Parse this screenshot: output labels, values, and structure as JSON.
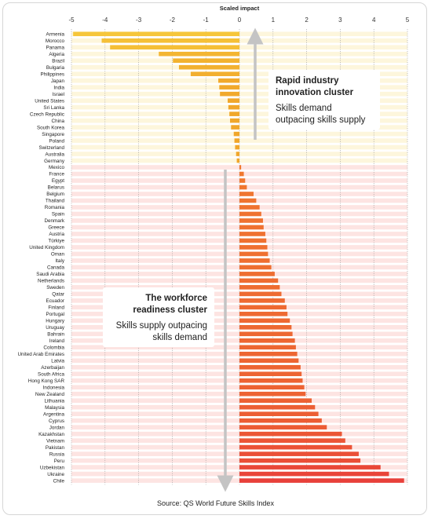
{
  "chart_data": {
    "type": "bar",
    "orientation": "horizontal",
    "title": "",
    "xlabel": "Scaled impact",
    "ylabel": "",
    "xlim": [
      -5,
      5
    ],
    "xticks": [
      "-5",
      "-4",
      "-3",
      "-2",
      "-1",
      "0",
      "1",
      "2",
      "3",
      "4",
      "5"
    ],
    "grid": true,
    "categories": [
      "Armenia",
      "Morocco",
      "Panama",
      "Algeria",
      "Brazil",
      "Bulgaria",
      "Philippines",
      "Japan",
      "India",
      "Israel",
      "United States",
      "Sri Lanka",
      "Czech Republic",
      "China",
      "South Korea",
      "Singapore",
      "Poland",
      "Switzerland",
      "Australia",
      "Germany",
      "Mexico",
      "France",
      "Egypt",
      "Belarus",
      "Belgium",
      "Thailand",
      "Romania",
      "Spain",
      "Denmark",
      "Greece",
      "Austria",
      "Türkiye",
      "United Kingdom",
      "Oman",
      "Italy",
      "Canada",
      "Saudi Arabia",
      "Netherlands",
      "Sweden",
      "Qatar",
      "Ecuador",
      "Finland",
      "Portugal",
      "Hungary",
      "Uruguay",
      "Bahrain",
      "Ireland",
      "Colombia",
      "United Arab Emirates",
      "Latvia",
      "Azerbaijan",
      "South Africa",
      "Hong Kong SAR",
      "Indonesia",
      "New Zealand",
      "Lithuania",
      "Malaysia",
      "Argentina",
      "Cyprus",
      "Jordan",
      "Kazakhstan",
      "Vietnam",
      "Pakistan",
      "Russia",
      "Peru",
      "Uzbekistan",
      "Ukraine",
      "Chile"
    ],
    "values": [
      -4.95,
      -4.1,
      -3.85,
      -2.4,
      -1.98,
      -1.8,
      -1.45,
      -0.63,
      -0.6,
      -0.58,
      -0.35,
      -0.33,
      -0.3,
      -0.28,
      -0.25,
      -0.17,
      -0.15,
      -0.13,
      -0.1,
      -0.08,
      0.05,
      0.13,
      0.17,
      0.22,
      0.42,
      0.5,
      0.6,
      0.65,
      0.7,
      0.72,
      0.77,
      0.8,
      0.83,
      0.85,
      0.9,
      0.95,
      1.05,
      1.15,
      1.2,
      1.25,
      1.35,
      1.4,
      1.43,
      1.5,
      1.55,
      1.58,
      1.65,
      1.68,
      1.72,
      1.76,
      1.82,
      1.85,
      1.88,
      1.93,
      1.97,
      2.15,
      2.25,
      2.35,
      2.45,
      2.6,
      3.05,
      3.15,
      3.35,
      3.55,
      3.6,
      4.2,
      4.45,
      4.9
    ],
    "clusters": [
      {
        "name": "Rapid industry innovation cluster",
        "description": "Skills demand outpacing skills supply"
      },
      {
        "name": "The workforce readiness cluster",
        "description": "Skills supply outpacing skills demand"
      }
    ],
    "colors": {
      "negative_start": "#f6c63a",
      "negative_end": "#f0a52a",
      "positive_start": "#f07a2e",
      "positive_end": "#e8403a",
      "band_negative": "#fdf6dc",
      "band_positive": "#fde4e2",
      "arrow": "#c4c4c4",
      "grid": "#9a9a9a"
    }
  },
  "callouts": {
    "innovation_title_1": "Rapid industry",
    "innovation_title_2": "innovation cluster",
    "innovation_sub_1": "Skills demand",
    "innovation_sub_2": "outpacing skills supply",
    "readiness_title_1": "The workforce",
    "readiness_title_2": "readiness cluster",
    "readiness_sub_1": "Skills supply outpacing",
    "readiness_sub_2": "skills demand"
  },
  "source": "Source: QS World Future Skills Index"
}
